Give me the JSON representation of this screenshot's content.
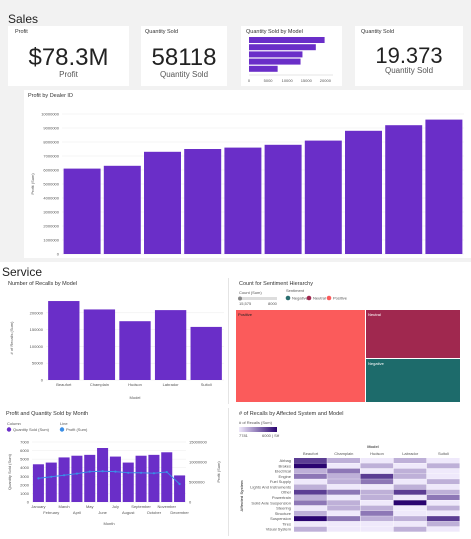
{
  "colors": {
    "purple": "#6a2ec8",
    "teal": "#1d6b6b",
    "negative": "#2a6e70",
    "neutral": "#a0284f",
    "positive": "#fb5b5b",
    "line": "#3a8ee6"
  },
  "sales": {
    "title": "Sales",
    "profit_card": {
      "label": "Profit",
      "value": "$78.3M",
      "sub": "Profit"
    },
    "qty_card": {
      "label": "Quantity Sold",
      "value": "58118",
      "sub": "Quantity Sold"
    },
    "qty_model_card": {
      "label": "Quantity Sold by Model"
    },
    "kpi_card": {
      "label": "Quantity Sold",
      "value": "19.373",
      "sub": "Quantity Sold"
    },
    "profit_dealer": {
      "label": "Profit by Dealer ID",
      "ylabel": "Profit (Sum)"
    }
  },
  "service": {
    "title": "Service",
    "recalls_model": {
      "label": "Number of Recalls by Model",
      "ylabel": "# of Recalls (Sum)",
      "xlabel": "Model"
    },
    "sentiment": {
      "label": "Count for Sentiment Hierarchy",
      "size_label": "Count (Sum)",
      "size_min": "15,575",
      "size_max": "8000",
      "legend_title": "Sentiment",
      "legend": [
        "Negative",
        "Neutral",
        "Positive"
      ],
      "cells": {
        "positive": "Positive",
        "neutral": "Neutral",
        "negative": "Negative"
      }
    },
    "pq_month": {
      "label": "Profit and Quantity Sold by Month",
      "col_title": "Column",
      "col_item": "Quantity Sold (Sum)",
      "line_title": "Line",
      "line_item": "Profit (Sum)",
      "ylabel_left": "Quantity Sold (Sum)",
      "ylabel_right": "Profit (Sum)",
      "xlabel": "Month"
    },
    "heatmap": {
      "label": "# of Recalls by Affected System and Model",
      "legend_title": "# of Recalls (Sum)",
      "legend_min": "7781",
      "legend_max": "6000 | Stf",
      "col_title": "Model",
      "row_title": "Affected System"
    }
  },
  "chart_data": [
    {
      "type": "bar",
      "id": "qty-by-model",
      "orientation": "horizontal",
      "categories": [
        "",
        "",
        "",
        "",
        ""
      ],
      "values": [
        19800,
        17500,
        14000,
        13500,
        7500
      ],
      "xticks": [
        "0",
        "5000",
        "10000",
        "15000",
        "20000"
      ],
      "xlim": [
        0,
        22000
      ]
    },
    {
      "type": "bar",
      "id": "profit-by-dealer",
      "categories": [
        "",
        "",
        "",
        "",
        "",
        "",
        "",
        "",
        "",
        ""
      ],
      "values": [
        6100000,
        6300000,
        7300000,
        7500000,
        7600000,
        7800000,
        8100000,
        8800000,
        9200000,
        9600000
      ],
      "yticks": [
        "0",
        "1000000",
        "2000000",
        "3000000",
        "4000000",
        "5000000",
        "6000000",
        "7000000",
        "8000000",
        "9000000",
        "10000000"
      ],
      "ylim": [
        0,
        10000000
      ]
    },
    {
      "type": "bar",
      "id": "recalls-by-model",
      "categories": [
        "Beaufort",
        "Champlain",
        "Hudson",
        "Labrador",
        "Suitoli"
      ],
      "values": [
        235000,
        210000,
        175000,
        208000,
        158000
      ],
      "yticks": [
        "0",
        "50000",
        "100000",
        "150000",
        "200000"
      ],
      "ylim": [
        0,
        250000
      ]
    },
    {
      "type": "bar",
      "id": "profit-qty-by-month",
      "categories": [
        "January",
        "February",
        "March",
        "April",
        "May",
        "June",
        "July",
        "August",
        "September",
        "October",
        "November",
        "December"
      ],
      "series": [
        {
          "name": "Quantity Sold (Sum)",
          "values": [
            4400,
            4600,
            5200,
            5400,
            5500,
            6300,
            5300,
            4600,
            5400,
            5500,
            5800,
            3100
          ]
        },
        {
          "name": "Profit (Sum)",
          "values": [
            5900000,
            6300000,
            6700000,
            7100000,
            7600000,
            7700000,
            7600000,
            7300000,
            7300000,
            7200000,
            7500000,
            4500000
          ]
        }
      ],
      "yticks_left": [
        "0",
        "1000",
        "2000",
        "3000",
        "4000",
        "5000",
        "6000",
        "7000"
      ],
      "yticks_right": [
        "0",
        "5000000",
        "10000000",
        "15000000"
      ],
      "ylim_left": [
        0,
        7000
      ],
      "ylim_right": [
        0,
        15000000
      ]
    },
    {
      "type": "heatmap",
      "id": "recalls-heatmap",
      "columns": [
        "Beaufort",
        "Champlain",
        "Hudson",
        "Labrador",
        "Suitoli"
      ],
      "rows": [
        "Airbag",
        "Brakes",
        "Electrical",
        "Engine",
        "Fuel Supply",
        "Lights And Instruments",
        "Other",
        "Powertrain",
        "Solid Axle Suspension",
        "Steering",
        "Structure",
        "Suspension",
        "Tires",
        "Visual System"
      ],
      "values": [
        [
          4,
          2,
          1,
          2,
          1
        ],
        [
          5,
          1,
          2,
          1,
          2
        ],
        [
          2,
          3,
          1,
          2,
          1
        ],
        [
          3,
          2,
          4,
          2,
          1
        ],
        [
          1,
          2,
          3,
          1,
          2
        ],
        [
          2,
          1,
          1,
          2,
          1
        ],
        [
          4,
          3,
          2,
          4,
          2
        ],
        [
          2,
          1,
          2,
          1,
          3
        ],
        [
          3,
          2,
          1,
          5,
          1
        ],
        [
          1,
          2,
          2,
          1,
          2
        ],
        [
          2,
          1,
          3,
          1,
          1
        ],
        [
          5,
          3,
          2,
          2,
          4
        ],
        [
          1,
          1,
          1,
          1,
          2
        ],
        [
          2,
          1,
          1,
          2,
          1
        ]
      ]
    }
  ]
}
